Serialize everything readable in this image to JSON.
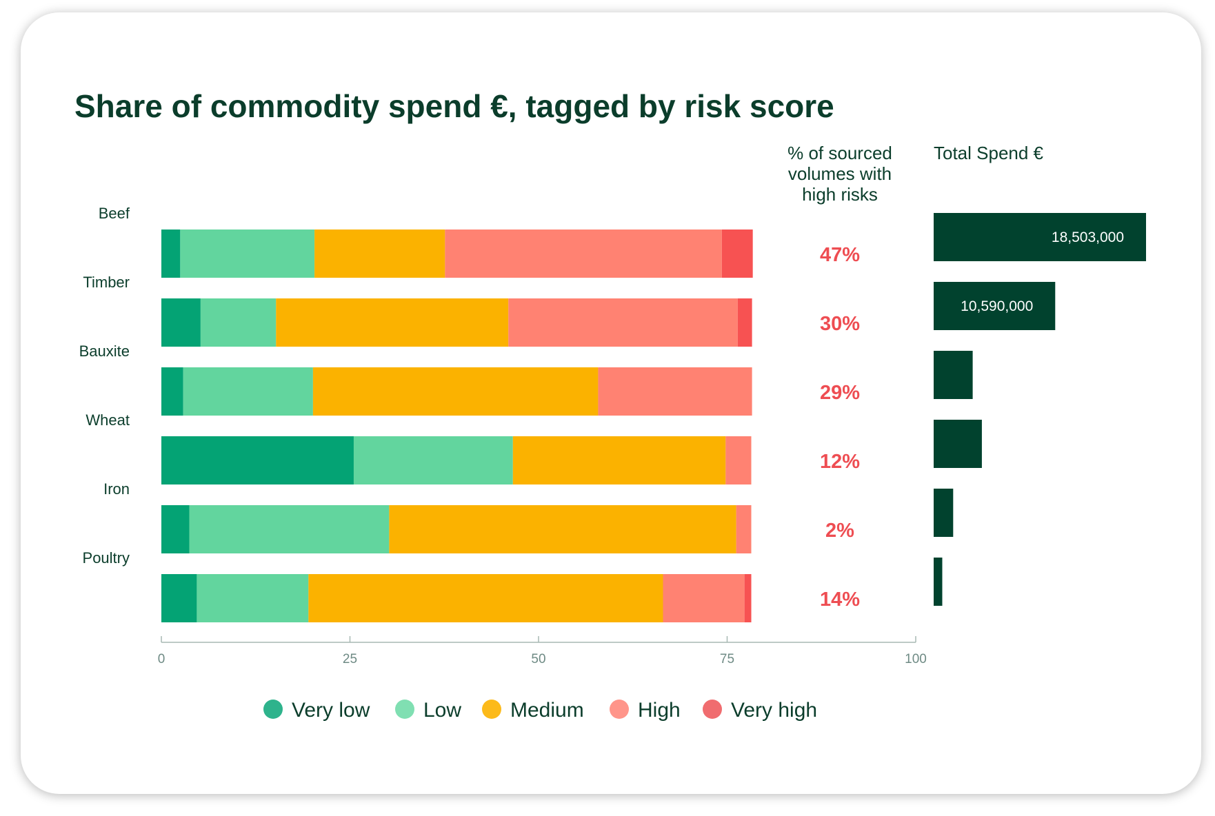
{
  "chart_data": {
    "type": "bar",
    "orientation": "horizontal",
    "stacked": true,
    "title": "Share of commodity spend €, tagged by risk score",
    "categories": [
      "Beef",
      "Timber",
      "Bauxite",
      "Wheat",
      "Iron",
      "Poultry"
    ],
    "series": [
      {
        "name": "Very low",
        "color": "#04a374",
        "values": [
          2.5,
          5.2,
          2.9,
          25.5,
          3.7,
          4.7
        ]
      },
      {
        "name": "Low",
        "color": "#62d59e",
        "values": [
          17.8,
          10.0,
          17.2,
          21.1,
          26.5,
          14.8
        ]
      },
      {
        "name": "Medium",
        "color": "#fbb200",
        "values": [
          17.3,
          30.8,
          37.8,
          28.2,
          46.0,
          47.0
        ]
      },
      {
        "name": "High",
        "color": "#ff8272",
        "values": [
          36.7,
          30.4,
          20.4,
          3.4,
          2.0,
          10.8
        ]
      },
      {
        "name": "Very high",
        "color": "#f75252",
        "values": [
          4.1,
          1.9,
          0,
          0,
          0,
          0.9
        ]
      }
    ],
    "xlim": [
      0,
      100
    ],
    "xticks": [
      "0",
      "25",
      "50",
      "75",
      "100"
    ],
    "grid": false,
    "legend_position": "bottom",
    "high_risk_column": {
      "header": [
        "% of sourced",
        "volumes with",
        "high risks"
      ],
      "values": [
        "47%",
        "30%",
        "29%",
        "12%",
        "2%",
        "14%"
      ],
      "color": "#ee4d52"
    },
    "spend_column": {
      "header": "Total Spend €",
      "values": [
        18503000,
        10590000,
        3400000,
        4200000,
        1700000,
        750000
      ],
      "labels": [
        "18,503,000",
        "10,590,000",
        "",
        "",
        "",
        ""
      ],
      "color": "#01422e"
    }
  },
  "legend": {
    "items": [
      {
        "label": "Very low",
        "color": "#2eb38c"
      },
      {
        "label": "Low",
        "color": "#80dfb2"
      },
      {
        "label": "Medium",
        "color": "#fcba1a"
      },
      {
        "label": "High",
        "color": "#ff958a"
      },
      {
        "label": "Very high",
        "color": "#f06c6f"
      }
    ]
  }
}
